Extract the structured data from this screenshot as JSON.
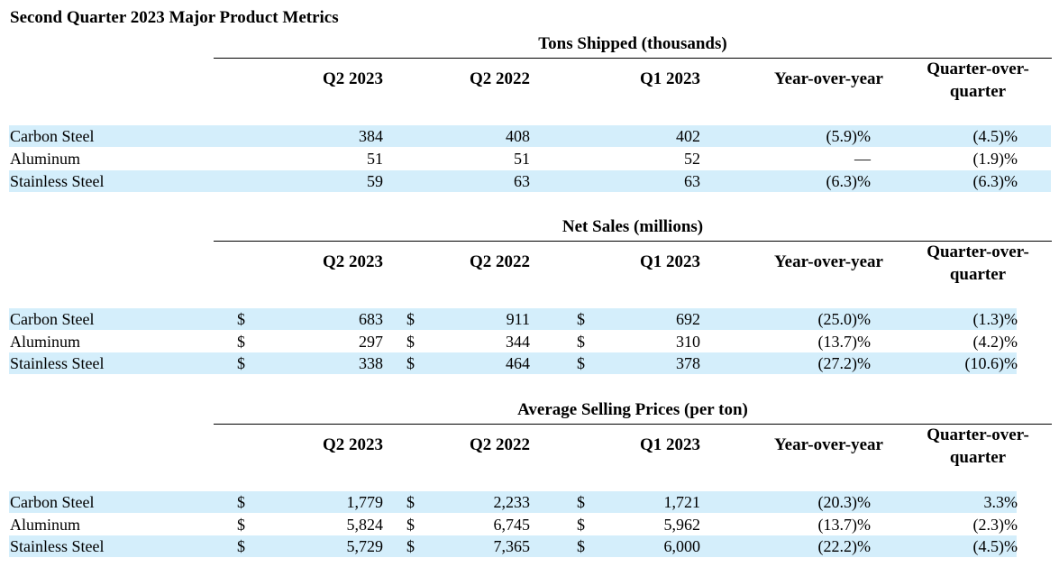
{
  "title": "Second Quarter 2023 Major Product Metrics",
  "columns": {
    "q2_2023": "Q2 2023",
    "q2_2022": "Q2 2022",
    "q1_2023": "Q1 2023",
    "yoy": "Year-over-year",
    "qoq_line1": "Quarter-over-",
    "qoq_line2": "quarter"
  },
  "sections": [
    {
      "title": "Tons Shipped (thousands)",
      "rows": [
        {
          "label": "Carbon Steel",
          "q2_2023": "384",
          "q2_2022": "408",
          "q1_2023": "402",
          "yoy": "(5.9)%",
          "qoq": "(4.5)%"
        },
        {
          "label": "Aluminum",
          "q2_2023": "51",
          "q2_2022": "51",
          "q1_2023": "52",
          "yoy": "—",
          "qoq": "(1.9)%"
        },
        {
          "label": "Stainless Steel",
          "q2_2023": "59",
          "q2_2022": "63",
          "q1_2023": "63",
          "yoy": "(6.3)%",
          "qoq": "(6.3)%"
        }
      ]
    },
    {
      "title": "Net Sales (millions)",
      "currency_symbol": "$",
      "rows": [
        {
          "label": "Carbon Steel",
          "q2_2023": "683",
          "q2_2022": "911",
          "q1_2023": "692",
          "yoy": "(25.0)%",
          "qoq": "(1.3)%"
        },
        {
          "label": "Aluminum",
          "q2_2023": "297",
          "q2_2022": "344",
          "q1_2023": "310",
          "yoy": "(13.7)%",
          "qoq": "(4.2)%"
        },
        {
          "label": "Stainless Steel",
          "q2_2023": "338",
          "q2_2022": "464",
          "q1_2023": "378",
          "yoy": "(27.2)%",
          "qoq": "(10.6)%"
        }
      ]
    },
    {
      "title": "Average Selling Prices (per ton)",
      "currency_symbol": "$",
      "rows": [
        {
          "label": "Carbon Steel",
          "q2_2023": "1,779",
          "q2_2022": "2,233",
          "q1_2023": "1,721",
          "yoy": "(20.3)%",
          "qoq": "3.3%"
        },
        {
          "label": "Aluminum",
          "q2_2023": "5,824",
          "q2_2022": "6,745",
          "q1_2023": "5,962",
          "yoy": "(13.7)%",
          "qoq": "(2.3)%"
        },
        {
          "label": "Stainless Steel",
          "q2_2023": "5,729",
          "q2_2022": "7,365",
          "q1_2023": "6,000",
          "yoy": "(22.2)%",
          "qoq": "(4.5)%"
        }
      ]
    }
  ]
}
